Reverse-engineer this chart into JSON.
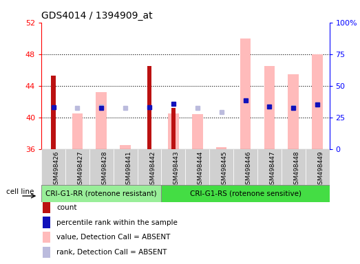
{
  "title": "GDS4014 / 1394909_at",
  "samples": [
    "GSM498426",
    "GSM498427",
    "GSM498428",
    "GSM498441",
    "GSM498442",
    "GSM498443",
    "GSM498444",
    "GSM498445",
    "GSM498446",
    "GSM498447",
    "GSM498448",
    "GSM498449"
  ],
  "group1_count": 5,
  "group2_count": 7,
  "ylim_left": [
    36,
    52
  ],
  "ylim_right": [
    0,
    100
  ],
  "yticks_left": [
    36,
    40,
    44,
    48,
    52
  ],
  "yticks_right": [
    0,
    25,
    50,
    75,
    100
  ],
  "count_values": [
    45.3,
    null,
    null,
    null,
    46.5,
    41.2,
    null,
    null,
    null,
    null,
    null,
    null
  ],
  "rank_values": [
    41.3,
    null,
    41.2,
    null,
    41.3,
    41.7,
    null,
    null,
    42.2,
    41.4,
    41.2,
    41.6
  ],
  "value_absent": [
    null,
    40.5,
    43.2,
    36.5,
    null,
    40.5,
    40.4,
    36.3,
    50.0,
    46.5,
    45.5,
    48.0
  ],
  "rank_absent": [
    null,
    41.2,
    41.4,
    41.2,
    null,
    null,
    41.2,
    40.7,
    null,
    null,
    41.3,
    41.6
  ],
  "group1_label": "CRI-G1-RR (rotenone resistant)",
  "group2_label": "CRI-G1-RS (rotenone sensitive)",
  "cell_line_label": "cell line",
  "legend_items": [
    {
      "color": "#bb1111",
      "label": "count"
    },
    {
      "color": "#1111bb",
      "label": "percentile rank within the sample"
    },
    {
      "color": "#ffbbbb",
      "label": "value, Detection Call = ABSENT"
    },
    {
      "color": "#bbbbdd",
      "label": "rank, Detection Call = ABSENT"
    }
  ],
  "count_color": "#bb1111",
  "rank_color": "#1111bb",
  "value_absent_color": "#ffbbbb",
  "rank_absent_color": "#bbbbdd",
  "plot_bg": "#ffffff",
  "xlabels_bg": "#d0d0d0",
  "group1_bg": "#99ee99",
  "group2_bg": "#44dd44",
  "group1_edge": "#888888",
  "group2_edge": "#888888",
  "narrow_bar_width": 0.18,
  "wide_bar_width": 0.45
}
